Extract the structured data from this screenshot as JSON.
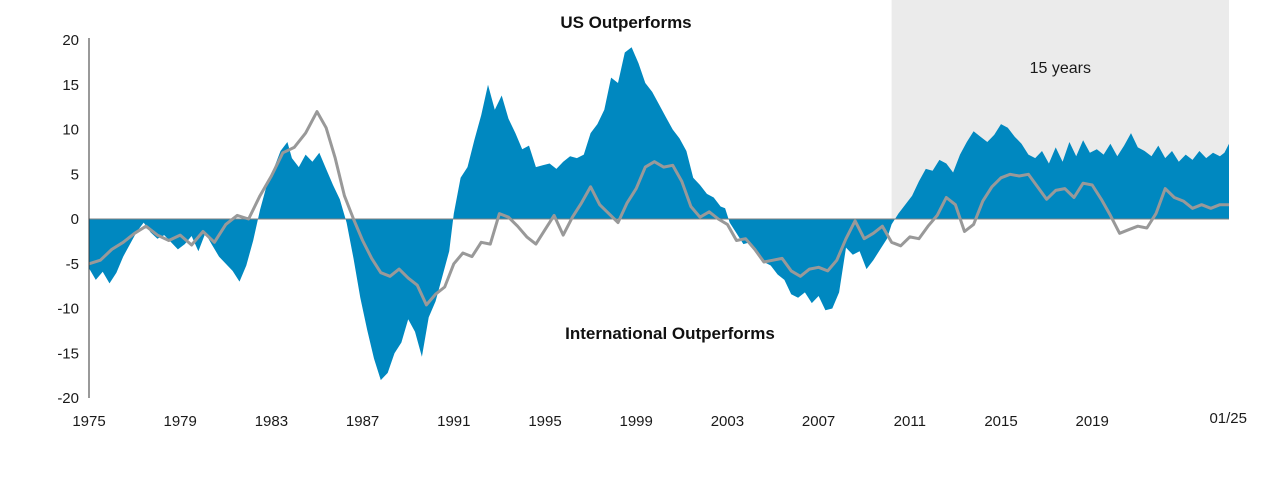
{
  "chart_data": {
    "type": "area",
    "title": "",
    "xlabel": "",
    "ylabel": "",
    "xlim": [
      1975.0,
      2025.0
    ],
    "ylim": [
      -20,
      20
    ],
    "y_ticks": [
      20,
      15,
      10,
      5,
      0,
      -5,
      -10,
      -15,
      -20
    ],
    "x_ticks": [
      {
        "x": 1975,
        "label": "1975"
      },
      {
        "x": 1979,
        "label": "1979"
      },
      {
        "x": 1983,
        "label": "1983"
      },
      {
        "x": 1987,
        "label": "1987"
      },
      {
        "x": 1991,
        "label": "1991"
      },
      {
        "x": 1995,
        "label": "1995"
      },
      {
        "x": 1999,
        "label": "1999"
      },
      {
        "x": 2003,
        "label": "2003"
      },
      {
        "x": 2007,
        "label": "2007"
      },
      {
        "x": 2011,
        "label": "2011"
      },
      {
        "x": 2015,
        "label": "2015"
      },
      {
        "x": 2019,
        "label": "2019"
      },
      {
        "x": 2025.0,
        "label": "01/25"
      }
    ],
    "annotations": {
      "top": "US Outperforms",
      "bottom": "International Outperforms",
      "shaded": "15 years"
    },
    "shaded_range": [
      2010.2,
      2025.0
    ],
    "colors": {
      "area": "#0088c0",
      "line": "#999999",
      "shade": "#ebebeb",
      "axis": "#333333"
    },
    "series": [
      {
        "type": "area",
        "points": [
          [
            1975.0,
            -5.5
          ],
          [
            1975.3,
            -6.8
          ],
          [
            1975.6,
            -5.9
          ],
          [
            1975.9,
            -7.2
          ],
          [
            1976.2,
            -6.0
          ],
          [
            1976.5,
            -4.2
          ],
          [
            1976.8,
            -2.8
          ],
          [
            1977.1,
            -1.4
          ],
          [
            1977.4,
            -0.4
          ],
          [
            1977.7,
            -1.5
          ],
          [
            1978.0,
            -2.2
          ],
          [
            1978.3,
            -1.8
          ],
          [
            1978.6,
            -2.6
          ],
          [
            1978.9,
            -3.4
          ],
          [
            1979.2,
            -2.8
          ],
          [
            1979.5,
            -1.9
          ],
          [
            1979.8,
            -3.6
          ],
          [
            1980.1,
            -1.6
          ],
          [
            1980.4,
            -2.9
          ],
          [
            1980.7,
            -4.2
          ],
          [
            1981.0,
            -5.0
          ],
          [
            1981.3,
            -5.8
          ],
          [
            1981.6,
            -7.0
          ],
          [
            1981.9,
            -5.2
          ],
          [
            1982.2,
            -2.4
          ],
          [
            1982.5,
            1.0
          ],
          [
            1982.8,
            3.8
          ],
          [
            1983.1,
            5.6
          ],
          [
            1983.4,
            7.6
          ],
          [
            1983.7,
            8.6
          ],
          [
            1983.9,
            6.8
          ],
          [
            1984.2,
            5.8
          ],
          [
            1984.5,
            7.2
          ],
          [
            1984.8,
            6.4
          ],
          [
            1985.1,
            7.4
          ],
          [
            1985.4,
            5.6
          ],
          [
            1985.7,
            3.8
          ],
          [
            1986.0,
            2.2
          ],
          [
            1986.3,
            -0.4
          ],
          [
            1986.6,
            -4.4
          ],
          [
            1986.9,
            -8.8
          ],
          [
            1987.2,
            -12.4
          ],
          [
            1987.5,
            -15.6
          ],
          [
            1987.8,
            -18.0
          ],
          [
            1988.1,
            -17.2
          ],
          [
            1988.4,
            -15.0
          ],
          [
            1988.7,
            -13.8
          ],
          [
            1989.0,
            -11.2
          ],
          [
            1989.3,
            -12.6
          ],
          [
            1989.6,
            -15.4
          ],
          [
            1989.9,
            -11.0
          ],
          [
            1990.2,
            -9.2
          ],
          [
            1990.5,
            -6.4
          ],
          [
            1990.8,
            -3.6
          ],
          [
            1991.0,
            0.6
          ],
          [
            1991.3,
            4.6
          ],
          [
            1991.6,
            5.8
          ],
          [
            1991.9,
            8.8
          ],
          [
            1992.2,
            11.6
          ],
          [
            1992.5,
            15.0
          ],
          [
            1992.8,
            12.2
          ],
          [
            1993.1,
            13.8
          ],
          [
            1993.4,
            11.2
          ],
          [
            1993.7,
            9.6
          ],
          [
            1994.0,
            7.8
          ],
          [
            1994.3,
            8.2
          ],
          [
            1994.6,
            5.8
          ],
          [
            1994.9,
            6.0
          ],
          [
            1995.2,
            6.2
          ],
          [
            1995.5,
            5.6
          ],
          [
            1995.8,
            6.4
          ],
          [
            1996.1,
            7.0
          ],
          [
            1996.4,
            6.8
          ],
          [
            1996.7,
            7.2
          ],
          [
            1997.0,
            9.6
          ],
          [
            1997.3,
            10.6
          ],
          [
            1997.6,
            12.2
          ],
          [
            1997.9,
            15.8
          ],
          [
            1998.2,
            15.2
          ],
          [
            1998.5,
            18.6
          ],
          [
            1998.8,
            19.2
          ],
          [
            1999.1,
            17.4
          ],
          [
            1999.4,
            15.2
          ],
          [
            1999.7,
            14.2
          ],
          [
            2000.0,
            12.8
          ],
          [
            2000.3,
            11.4
          ],
          [
            2000.6,
            10.0
          ],
          [
            2000.9,
            9.0
          ],
          [
            2001.2,
            7.6
          ],
          [
            2001.5,
            4.6
          ],
          [
            2001.8,
            3.8
          ],
          [
            2002.1,
            2.8
          ],
          [
            2002.4,
            2.4
          ],
          [
            2002.7,
            1.4
          ],
          [
            2002.9,
            1.2
          ],
          [
            2003.1,
            -0.4
          ],
          [
            2003.4,
            -1.6
          ],
          [
            2003.7,
            -2.8
          ],
          [
            2004.0,
            -2.6
          ],
          [
            2004.3,
            -3.6
          ],
          [
            2004.6,
            -4.8
          ],
          [
            2004.9,
            -5.2
          ],
          [
            2005.2,
            -6.2
          ],
          [
            2005.5,
            -6.8
          ],
          [
            2005.8,
            -8.4
          ],
          [
            2006.1,
            -8.8
          ],
          [
            2006.4,
            -8.2
          ],
          [
            2006.7,
            -9.4
          ],
          [
            2007.0,
            -8.6
          ],
          [
            2007.3,
            -10.2
          ],
          [
            2007.6,
            -10.0
          ],
          [
            2007.9,
            -8.2
          ],
          [
            2008.2,
            -3.2
          ],
          [
            2008.5,
            -4.0
          ],
          [
            2008.8,
            -3.6
          ],
          [
            2009.1,
            -5.6
          ],
          [
            2009.4,
            -4.6
          ],
          [
            2009.7,
            -3.4
          ],
          [
            2010.0,
            -2.2
          ],
          [
            2010.2,
            -0.6
          ],
          [
            2010.5,
            0.6
          ],
          [
            2010.8,
            1.6
          ],
          [
            2011.1,
            2.6
          ],
          [
            2011.4,
            4.2
          ],
          [
            2011.7,
            5.6
          ],
          [
            2012.0,
            5.4
          ],
          [
            2012.3,
            6.6
          ],
          [
            2012.6,
            6.2
          ],
          [
            2012.9,
            5.2
          ],
          [
            2013.2,
            7.2
          ],
          [
            2013.5,
            8.6
          ],
          [
            2013.8,
            9.8
          ],
          [
            2014.1,
            9.2
          ],
          [
            2014.4,
            8.6
          ],
          [
            2014.7,
            9.4
          ],
          [
            2015.0,
            10.6
          ],
          [
            2015.3,
            10.2
          ],
          [
            2015.6,
            9.2
          ],
          [
            2015.9,
            8.4
          ],
          [
            2016.2,
            7.2
          ],
          [
            2016.5,
            6.8
          ],
          [
            2016.8,
            7.6
          ],
          [
            2017.1,
            6.2
          ],
          [
            2017.4,
            8.0
          ],
          [
            2017.7,
            6.4
          ],
          [
            2018.0,
            8.6
          ],
          [
            2018.3,
            7.0
          ],
          [
            2018.6,
            8.8
          ],
          [
            2018.9,
            7.4
          ],
          [
            2019.2,
            7.8
          ],
          [
            2019.5,
            7.2
          ],
          [
            2019.8,
            8.4
          ],
          [
            2020.1,
            7.0
          ],
          [
            2020.4,
            8.2
          ],
          [
            2020.7,
            9.6
          ],
          [
            2021.0,
            8.0
          ],
          [
            2021.3,
            7.6
          ],
          [
            2021.6,
            7.0
          ],
          [
            2021.9,
            8.2
          ],
          [
            2022.2,
            6.8
          ],
          [
            2022.5,
            7.6
          ],
          [
            2022.8,
            6.4
          ],
          [
            2023.1,
            7.2
          ],
          [
            2023.4,
            6.6
          ],
          [
            2023.7,
            7.6
          ],
          [
            2024.0,
            6.8
          ],
          [
            2024.3,
            7.4
          ],
          [
            2024.6,
            7.0
          ],
          [
            2024.8,
            7.4
          ],
          [
            2025.0,
            8.4
          ]
        ]
      },
      {
        "type": "line",
        "points": [
          [
            1975.0,
            -5.0
          ],
          [
            1975.5,
            -4.6
          ],
          [
            1976.0,
            -3.4
          ],
          [
            1976.5,
            -2.6
          ],
          [
            1977.0,
            -1.6
          ],
          [
            1977.5,
            -0.8
          ],
          [
            1978.0,
            -1.8
          ],
          [
            1978.5,
            -2.4
          ],
          [
            1979.0,
            -1.8
          ],
          [
            1979.5,
            -2.9
          ],
          [
            1980.0,
            -1.4
          ],
          [
            1980.5,
            -2.6
          ],
          [
            1981.0,
            -0.6
          ],
          [
            1981.5,
            0.4
          ],
          [
            1982.0,
            0.0
          ],
          [
            1982.5,
            2.6
          ],
          [
            1983.0,
            4.8
          ],
          [
            1983.5,
            7.4
          ],
          [
            1984.0,
            8.0
          ],
          [
            1984.5,
            9.6
          ],
          [
            1985.0,
            12.0
          ],
          [
            1985.4,
            10.2
          ],
          [
            1985.8,
            6.8
          ],
          [
            1986.2,
            2.6
          ],
          [
            1986.6,
            0.0
          ],
          [
            1987.0,
            -2.4
          ],
          [
            1987.4,
            -4.4
          ],
          [
            1987.8,
            -6.0
          ],
          [
            1988.2,
            -6.4
          ],
          [
            1988.6,
            -5.6
          ],
          [
            1989.0,
            -6.6
          ],
          [
            1989.4,
            -7.4
          ],
          [
            1989.8,
            -9.6
          ],
          [
            1990.2,
            -8.4
          ],
          [
            1990.6,
            -7.6
          ],
          [
            1991.0,
            -5.0
          ],
          [
            1991.4,
            -3.8
          ],
          [
            1991.8,
            -4.2
          ],
          [
            1992.2,
            -2.6
          ],
          [
            1992.6,
            -2.8
          ],
          [
            1993.0,
            0.6
          ],
          [
            1993.4,
            0.2
          ],
          [
            1993.8,
            -0.8
          ],
          [
            1994.2,
            -2.0
          ],
          [
            1994.6,
            -2.8
          ],
          [
            1995.0,
            -1.2
          ],
          [
            1995.4,
            0.4
          ],
          [
            1995.8,
            -1.8
          ],
          [
            1996.2,
            0.2
          ],
          [
            1996.6,
            1.8
          ],
          [
            1997.0,
            3.6
          ],
          [
            1997.4,
            1.6
          ],
          [
            1997.8,
            0.6
          ],
          [
            1998.2,
            -0.4
          ],
          [
            1998.6,
            1.8
          ],
          [
            1999.0,
            3.4
          ],
          [
            1999.4,
            5.8
          ],
          [
            1999.8,
            6.4
          ],
          [
            2000.2,
            5.8
          ],
          [
            2000.6,
            6.0
          ],
          [
            2001.0,
            4.2
          ],
          [
            2001.4,
            1.4
          ],
          [
            2001.8,
            0.2
          ],
          [
            2002.2,
            0.8
          ],
          [
            2002.6,
            0.0
          ],
          [
            2003.0,
            -0.6
          ],
          [
            2003.4,
            -2.4
          ],
          [
            2003.8,
            -2.2
          ],
          [
            2004.2,
            -3.4
          ],
          [
            2004.6,
            -4.8
          ],
          [
            2005.0,
            -4.6
          ],
          [
            2005.4,
            -4.4
          ],
          [
            2005.8,
            -5.8
          ],
          [
            2006.2,
            -6.4
          ],
          [
            2006.6,
            -5.6
          ],
          [
            2007.0,
            -5.4
          ],
          [
            2007.4,
            -5.8
          ],
          [
            2007.8,
            -4.6
          ],
          [
            2008.2,
            -2.2
          ],
          [
            2008.6,
            -0.2
          ],
          [
            2009.0,
            -2.2
          ],
          [
            2009.4,
            -1.6
          ],
          [
            2009.8,
            -0.8
          ],
          [
            2010.2,
            -2.6
          ],
          [
            2010.6,
            -3.0
          ],
          [
            2011.0,
            -2.0
          ],
          [
            2011.4,
            -2.2
          ],
          [
            2011.8,
            -0.8
          ],
          [
            2012.2,
            0.4
          ],
          [
            2012.6,
            2.4
          ],
          [
            2013.0,
            1.6
          ],
          [
            2013.4,
            -1.4
          ],
          [
            2013.8,
            -0.6
          ],
          [
            2014.2,
            2.0
          ],
          [
            2014.6,
            3.6
          ],
          [
            2015.0,
            4.6
          ],
          [
            2015.4,
            5.0
          ],
          [
            2015.8,
            4.8
          ],
          [
            2016.2,
            5.0
          ],
          [
            2016.6,
            3.6
          ],
          [
            2017.0,
            2.2
          ],
          [
            2017.4,
            3.2
          ],
          [
            2017.8,
            3.4
          ],
          [
            2018.2,
            2.4
          ],
          [
            2018.6,
            4.0
          ],
          [
            2019.0,
            3.8
          ],
          [
            2019.4,
            2.2
          ],
          [
            2019.8,
            0.4
          ],
          [
            2020.2,
            -1.6
          ],
          [
            2020.6,
            -1.2
          ],
          [
            2021.0,
            -0.8
          ],
          [
            2021.4,
            -1.0
          ],
          [
            2021.8,
            0.6
          ],
          [
            2022.2,
            3.4
          ],
          [
            2022.6,
            2.4
          ],
          [
            2023.0,
            2.0
          ],
          [
            2023.4,
            1.2
          ],
          [
            2023.8,
            1.6
          ],
          [
            2024.2,
            1.2
          ],
          [
            2024.6,
            1.6
          ],
          [
            2025.0,
            1.6
          ]
        ]
      }
    ]
  }
}
